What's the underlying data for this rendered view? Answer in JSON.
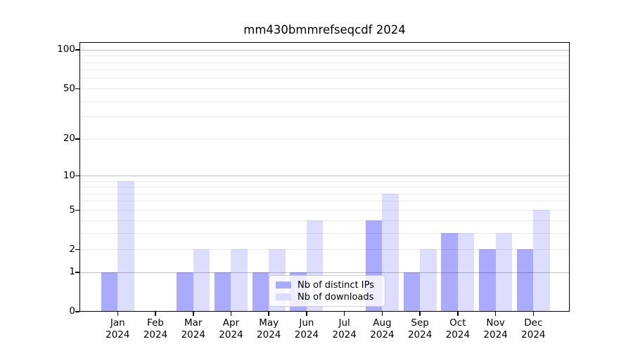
{
  "chart_data": {
    "type": "bar",
    "title": "mm430bmmrefseqcdf 2024",
    "categories": [
      "Jan",
      "Feb",
      "Mar",
      "Apr",
      "May",
      "Jun",
      "Jul",
      "Aug",
      "Sep",
      "Oct",
      "Nov",
      "Dec"
    ],
    "category_year": "2024",
    "series": [
      {
        "name": "Nb of distinct IPs",
        "color": "#aaaaff",
        "values": [
          1,
          0,
          1,
          1,
          1,
          1,
          0,
          4,
          1,
          3,
          2,
          2
        ]
      },
      {
        "name": "Nb of downloads",
        "color": "#ddddff",
        "values": [
          9,
          0,
          2,
          2,
          2,
          4,
          0,
          7,
          2,
          3,
          3,
          5
        ]
      }
    ],
    "xlabel": "",
    "ylabel": "",
    "y_scale": "log1p",
    "y_ticks": [
      0,
      1,
      2,
      5,
      10,
      20,
      50,
      100
    ],
    "y_decade_gridlines": [
      1,
      10,
      100
    ],
    "y_minor_gridlines": [
      3,
      4,
      6,
      7,
      8,
      9,
      30,
      40,
      60,
      70,
      80,
      90
    ],
    "ylim": [
      0,
      115
    ],
    "grid": true,
    "legend_position": "lower center",
    "background_color": "#ffffff",
    "axis_color": "#000000"
  }
}
